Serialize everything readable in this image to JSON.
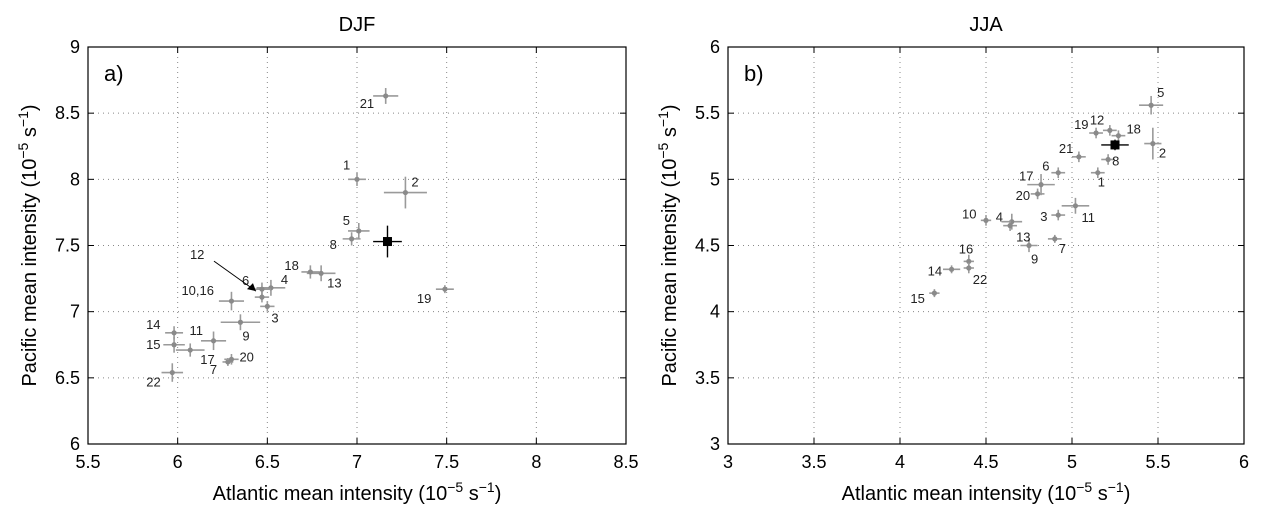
{
  "chart_data": [
    {
      "type": "scatter",
      "title": "DJF",
      "panel_label": "a)",
      "xlabel": "Atlantic mean intensity (10",
      "ylabel": "Pacific mean intensity (10",
      "unit_exponent": "−5",
      "unit_tail": " s",
      "unit_power": "−1",
      "unit_close": ")",
      "xlim": [
        5.5,
        8.5
      ],
      "ylim": [
        6,
        9
      ],
      "xticks": [
        "5.5",
        "6",
        "6.5",
        "7",
        "7.5",
        "8",
        "8.5"
      ],
      "yticks": [
        "6",
        "6.5",
        "7",
        "7.5",
        "8",
        "8.5",
        "9"
      ],
      "grid": true,
      "arrow_label": "12",
      "points": [
        {
          "label": "1",
          "x": 7.0,
          "y": 8.0,
          "ex": 0.05,
          "ey": 0.05
        },
        {
          "label": "2",
          "x": 7.27,
          "y": 7.9,
          "ex": 0.12,
          "ey": 0.12
        },
        {
          "label": "3",
          "x": 6.5,
          "y": 7.04,
          "ex": 0.04,
          "ey": 0.04
        },
        {
          "label": "4",
          "x": 6.52,
          "y": 7.18,
          "ex": 0.08,
          "ey": 0.06
        },
        {
          "label": "5",
          "x": 7.01,
          "y": 7.61,
          "ex": 0.06,
          "ey": 0.06
        },
        {
          "label": "6",
          "x": 6.47,
          "y": 7.17,
          "ex": 0.05,
          "ey": 0.05
        },
        {
          "label": "7",
          "x": 6.28,
          "y": 6.62,
          "ex": 0.03,
          "ey": 0.03
        },
        {
          "label": "8",
          "x": 6.97,
          "y": 7.55,
          "ex": 0.05,
          "ey": 0.05
        },
        {
          "label": "9",
          "x": 6.35,
          "y": 6.92,
          "ex": 0.11,
          "ey": 0.06
        },
        {
          "label": "10,16",
          "x": 6.3,
          "y": 7.08,
          "ex": 0.07,
          "ey": 0.07
        },
        {
          "label": "11",
          "x": 6.2,
          "y": 6.78,
          "ex": 0.07,
          "ey": 0.07
        },
        {
          "label": "12",
          "x": 6.47,
          "y": 7.11,
          "ex": 0.04,
          "ey": 0.04
        },
        {
          "label": "13",
          "x": 6.8,
          "y": 7.29,
          "ex": 0.08,
          "ey": 0.06
        },
        {
          "label": "14",
          "x": 5.98,
          "y": 6.84,
          "ex": 0.05,
          "ey": 0.05
        },
        {
          "label": "15",
          "x": 5.98,
          "y": 6.75,
          "ex": 0.06,
          "ey": 0.06
        },
        {
          "label": "17",
          "x": 6.07,
          "y": 6.71,
          "ex": 0.08,
          "ey": 0.05
        },
        {
          "label": "18",
          "x": 6.74,
          "y": 7.3,
          "ex": 0.05,
          "ey": 0.05
        },
        {
          "label": "19",
          "x": 7.49,
          "y": 7.17,
          "ex": 0.05,
          "ey": 0.03
        },
        {
          "label": "20",
          "x": 6.3,
          "y": 6.64,
          "ex": 0.04,
          "ey": 0.04
        },
        {
          "label": "21",
          "x": 7.16,
          "y": 8.63,
          "ex": 0.07,
          "ey": 0.06
        },
        {
          "label": "22",
          "x": 5.97,
          "y": 6.54,
          "ex": 0.06,
          "ey": 0.07
        }
      ],
      "reference": {
        "x": 7.17,
        "y": 7.53,
        "ex": 0.08,
        "ey": 0.12
      }
    },
    {
      "type": "scatter",
      "title": "JJA",
      "panel_label": "b)",
      "xlabel": "Atlantic mean intensity (10",
      "ylabel": "Pacific mean intensity (10",
      "unit_exponent": "−5",
      "unit_tail": " s",
      "unit_power": "−1",
      "unit_close": ")",
      "xlim": [
        3,
        6
      ],
      "ylim": [
        3,
        6
      ],
      "xticks": [
        "3",
        "3.5",
        "4",
        "4.5",
        "5",
        "5.5",
        "6"
      ],
      "yticks": [
        "3",
        "3.5",
        "4",
        "4.5",
        "5",
        "5.5",
        "6"
      ],
      "grid": true,
      "points": [
        {
          "label": "1",
          "x": 5.15,
          "y": 5.05,
          "ex": 0.04,
          "ey": 0.04
        },
        {
          "label": "2",
          "x": 5.47,
          "y": 5.27,
          "ex": 0.05,
          "ey": 0.12
        },
        {
          "label": "3",
          "x": 4.92,
          "y": 4.73,
          "ex": 0.04,
          "ey": 0.04
        },
        {
          "label": "4",
          "x": 4.65,
          "y": 4.68,
          "ex": 0.06,
          "ey": 0.06
        },
        {
          "label": "5",
          "x": 5.46,
          "y": 5.56,
          "ex": 0.07,
          "ey": 0.07
        },
        {
          "label": "6",
          "x": 4.92,
          "y": 5.05,
          "ex": 0.04,
          "ey": 0.04
        },
        {
          "label": "7",
          "x": 4.9,
          "y": 4.55,
          "ex": 0.04,
          "ey": 0.03
        },
        {
          "label": "8",
          "x": 5.21,
          "y": 5.15,
          "ex": 0.04,
          "ey": 0.04
        },
        {
          "label": "9",
          "x": 4.75,
          "y": 4.5,
          "ex": 0.05,
          "ey": 0.05
        },
        {
          "label": "10",
          "x": 4.5,
          "y": 4.69,
          "ex": 0.03,
          "ey": 0.04
        },
        {
          "label": "11",
          "x": 5.02,
          "y": 4.8,
          "ex": 0.08,
          "ey": 0.06
        },
        {
          "label": "12",
          "x": 5.22,
          "y": 5.37,
          "ex": 0.04,
          "ey": 0.04
        },
        {
          "label": "13",
          "x": 4.64,
          "y": 4.65,
          "ex": 0.04,
          "ey": 0.04
        },
        {
          "label": "14",
          "x": 4.3,
          "y": 4.32,
          "ex": 0.05,
          "ey": 0.03
        },
        {
          "label": "15",
          "x": 4.2,
          "y": 4.14,
          "ex": 0.03,
          "ey": 0.03
        },
        {
          "label": "16",
          "x": 4.4,
          "y": 4.38,
          "ex": 0.03,
          "ey": 0.05
        },
        {
          "label": "17",
          "x": 4.82,
          "y": 4.96,
          "ex": 0.08,
          "ey": 0.08
        },
        {
          "label": "18",
          "x": 5.27,
          "y": 5.33,
          "ex": 0.04,
          "ey": 0.04
        },
        {
          "label": "19",
          "x": 5.14,
          "y": 5.35,
          "ex": 0.04,
          "ey": 0.04
        },
        {
          "label": "20",
          "x": 4.8,
          "y": 4.89,
          "ex": 0.04,
          "ey": 0.04
        },
        {
          "label": "21",
          "x": 5.04,
          "y": 5.17,
          "ex": 0.04,
          "ey": 0.04
        },
        {
          "label": "22",
          "x": 4.4,
          "y": 4.33,
          "ex": 0.03,
          "ey": 0.04
        }
      ],
      "reference": {
        "x": 5.25,
        "y": 5.26,
        "ex": 0.08,
        "ey": 0.04
      }
    }
  ]
}
